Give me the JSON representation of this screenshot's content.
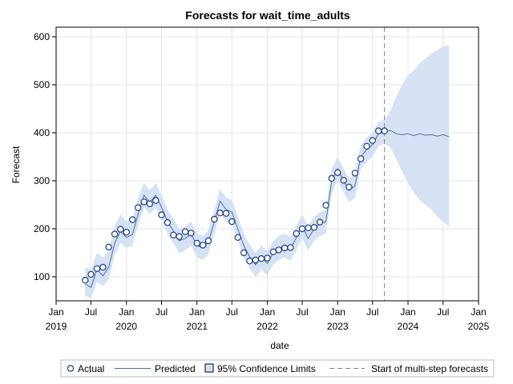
{
  "chart_data": {
    "type": "line",
    "title": "Forecasts for wait_time_adults",
    "xlabel": "date",
    "ylabel": "Forecast",
    "ylim": [
      50,
      620
    ],
    "xlim": [
      "2019-01-01",
      "2025-01-01"
    ],
    "yticks": [
      100,
      200,
      300,
      400,
      500,
      600
    ],
    "xticks": [
      {
        "date": "2019-01-01",
        "line1": "Jan",
        "line2": "2019"
      },
      {
        "date": "2019-07-01",
        "line1": "Jul",
        "line2": ""
      },
      {
        "date": "2020-01-01",
        "line1": "Jan",
        "line2": "2020"
      },
      {
        "date": "2020-07-01",
        "line1": "Jul",
        "line2": ""
      },
      {
        "date": "2021-01-01",
        "line1": "Jan",
        "line2": "2021"
      },
      {
        "date": "2021-07-01",
        "line1": "Jul",
        "line2": ""
      },
      {
        "date": "2022-01-01",
        "line1": "Jan",
        "line2": "2022"
      },
      {
        "date": "2022-07-01",
        "line1": "Jul",
        "line2": ""
      },
      {
        "date": "2023-01-01",
        "line1": "Jan",
        "line2": "2023"
      },
      {
        "date": "2023-07-01",
        "line1": "Jul",
        "line2": ""
      },
      {
        "date": "2024-01-01",
        "line1": "Jan",
        "line2": "2024"
      },
      {
        "date": "2024-07-01",
        "line1": "Jul",
        "line2": ""
      },
      {
        "date": "2025-01-01",
        "line1": "Jan",
        "line2": "2025"
      }
    ],
    "grid": true,
    "legend_position": "bottom",
    "forecast_start": "2023-09-01",
    "colors": {
      "actual_edge": "#1f3b8a",
      "predicted": "#4a6fa5",
      "confidence_fill": "#d6e2f3",
      "reference_line": "#7f7f7f",
      "grid": "#e4e4e4"
    },
    "x": [
      "2019-06-01",
      "2019-07-01",
      "2019-08-01",
      "2019-09-01",
      "2019-10-01",
      "2019-11-01",
      "2019-12-01",
      "2020-01-01",
      "2020-02-01",
      "2020-03-01",
      "2020-04-01",
      "2020-05-01",
      "2020-06-01",
      "2020-07-01",
      "2020-08-01",
      "2020-09-01",
      "2020-10-01",
      "2020-11-01",
      "2020-12-01",
      "2021-01-01",
      "2021-02-01",
      "2021-03-01",
      "2021-04-01",
      "2021-05-01",
      "2021-06-01",
      "2021-07-01",
      "2021-08-01",
      "2021-09-01",
      "2021-10-01",
      "2021-11-01",
      "2021-12-01",
      "2022-01-01",
      "2022-02-01",
      "2022-03-01",
      "2022-04-01",
      "2022-05-01",
      "2022-06-01",
      "2022-07-01",
      "2022-08-01",
      "2022-09-01",
      "2022-10-01",
      "2022-11-01",
      "2022-12-01",
      "2023-01-01",
      "2023-02-01",
      "2023-03-01",
      "2023-04-01",
      "2023-05-01",
      "2023-06-01",
      "2023-07-01",
      "2023-08-01",
      "2023-09-01",
      "2023-10-01",
      "2023-11-01",
      "2023-12-01",
      "2024-01-01",
      "2024-02-01",
      "2024-03-01",
      "2024-04-01",
      "2024-05-01",
      "2024-06-01",
      "2024-07-01",
      "2024-08-01"
    ],
    "series": [
      {
        "name": "Actual",
        "values": [
          93,
          105,
          117,
          120,
          162,
          189,
          199,
          193,
          219,
          244,
          256,
          252,
          259,
          229,
          213,
          187,
          184,
          194,
          191,
          170,
          166,
          175,
          220,
          233,
          232,
          215,
          182,
          150,
          133,
          135,
          138,
          139,
          152,
          156,
          160,
          161,
          190,
          200,
          202,
          203,
          214,
          249,
          305,
          317,
          301,
          287,
          316,
          346,
          372,
          384,
          404,
          404,
          null,
          null,
          null,
          null,
          null,
          null,
          null,
          null,
          null,
          null,
          null
        ]
      },
      {
        "name": "Predicted",
        "values": [
          85,
          78,
          115,
          102,
          120,
          170,
          195,
          182,
          188,
          230,
          270,
          255,
          270,
          245,
          215,
          195,
          175,
          180,
          190,
          165,
          160,
          172,
          215,
          258,
          240,
          235,
          200,
          165,
          142,
          125,
          140,
          128,
          150,
          160,
          165,
          158,
          182,
          205,
          180,
          200,
          210,
          215,
          300,
          325,
          300,
          280,
          290,
          350,
          365,
          375,
          398,
          402,
          405,
          398,
          396,
          398,
          394,
          398,
          395,
          396,
          393,
          396,
          392
        ],
        "lower": [
          60,
          55,
          90,
          80,
          95,
          145,
          170,
          160,
          165,
          205,
          245,
          230,
          245,
          220,
          190,
          170,
          150,
          155,
          165,
          140,
          135,
          147,
          190,
          233,
          215,
          210,
          175,
          140,
          117,
          100,
          115,
          103,
          125,
          135,
          140,
          133,
          157,
          180,
          155,
          175,
          185,
          190,
          275,
          300,
          275,
          255,
          265,
          325,
          340,
          350,
          373,
          377,
          370,
          345,
          320,
          295,
          275,
          260,
          250,
          240,
          225,
          215,
          205
        ],
        "upper": [
          120,
          115,
          150,
          140,
          155,
          205,
          230,
          215,
          220,
          265,
          295,
          280,
          295,
          270,
          240,
          220,
          200,
          205,
          215,
          190,
          185,
          197,
          240,
          283,
          265,
          260,
          225,
          190,
          167,
          150,
          165,
          153,
          175,
          185,
          190,
          183,
          207,
          230,
          205,
          225,
          235,
          240,
          325,
          350,
          325,
          305,
          315,
          375,
          390,
          400,
          423,
          427,
          445,
          475,
          500,
          520,
          530,
          545,
          555,
          565,
          572,
          580,
          582
        ]
      }
    ],
    "legend": [
      "Actual",
      "Predicted",
      "95% Confidence Limits",
      "Start of multi-step forecasts"
    ]
  }
}
